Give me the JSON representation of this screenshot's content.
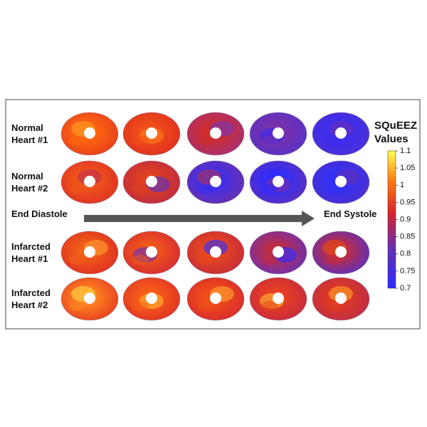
{
  "rows": [
    {
      "label": "Normal Heart #1"
    },
    {
      "label": "Normal Heart #2"
    },
    {
      "label": "Infarcted Heart #1"
    },
    {
      "label": "Infarcted Heart #2"
    }
  ],
  "arrow": {
    "start_label": "End Diastole",
    "end_label": "End Systole"
  },
  "colorbar": {
    "title": "SQuEEZ Values",
    "lim": [
      0.7,
      1.1
    ],
    "ticks": [
      1.1,
      1.05,
      1,
      0.95,
      0.9,
      0.85,
      0.8,
      0.75,
      0.7
    ]
  }
}
